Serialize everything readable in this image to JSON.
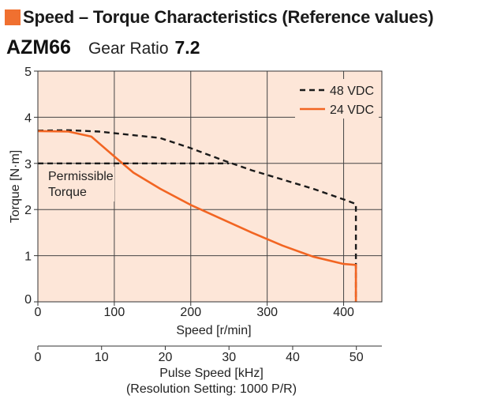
{
  "header": {
    "title": "Speed – Torque Characteristics (Reference values)",
    "model": "AZM66",
    "gear_label": "Gear Ratio",
    "gear_value": "7.2"
  },
  "colors": {
    "accent": "#f07030",
    "plot_background": "#fde6d8",
    "series_24vdc": "#f26522",
    "series_48vdc": "#1a1a1a"
  },
  "chart_data": {
    "type": "line",
    "ylabel": "Torque [N·m]",
    "xlabel": "Speed [r/min]",
    "xlim": [
      0,
      450
    ],
    "ylim": [
      0,
      5
    ],
    "x_ticks": [
      0,
      100,
      200,
      300,
      400
    ],
    "y_ticks": [
      0,
      1,
      2,
      3,
      4,
      5
    ],
    "grid": true,
    "legend_position": "top-right",
    "secondary_axis": {
      "label": "Pulse Speed [kHz]",
      "sublabel": "(Resolution Setting: 1000 P/R)",
      "range": [
        0,
        54
      ],
      "ticks": [
        0,
        10,
        20,
        30,
        40,
        50
      ]
    },
    "annotations": [
      {
        "lines": [
          "Permissible",
          "Torque"
        ]
      }
    ],
    "series": [
      {
        "name": "48 VDC",
        "style": "dashed",
        "x": [
          0,
          40,
          80,
          120,
          160,
          200,
          240,
          280,
          320,
          360,
          400,
          416,
          416
        ],
        "y": [
          3.71,
          3.72,
          3.69,
          3.62,
          3.55,
          3.33,
          3.08,
          2.85,
          2.65,
          2.45,
          2.22,
          2.12,
          0
        ]
      },
      {
        "name": "24 VDC",
        "style": "solid",
        "x": [
          0,
          40,
          70,
          100,
          125,
          160,
          200,
          240,
          280,
          320,
          360,
          400,
          416,
          416
        ],
        "y": [
          3.7,
          3.69,
          3.58,
          3.15,
          2.8,
          2.45,
          2.1,
          1.8,
          1.5,
          1.22,
          0.98,
          0.82,
          0.8,
          0
        ],
        "color": "#f26522"
      },
      {
        "name": "Permissible Torque",
        "style": "dashed",
        "x": [
          0,
          250
        ],
        "y": [
          3,
          3
        ]
      }
    ]
  }
}
